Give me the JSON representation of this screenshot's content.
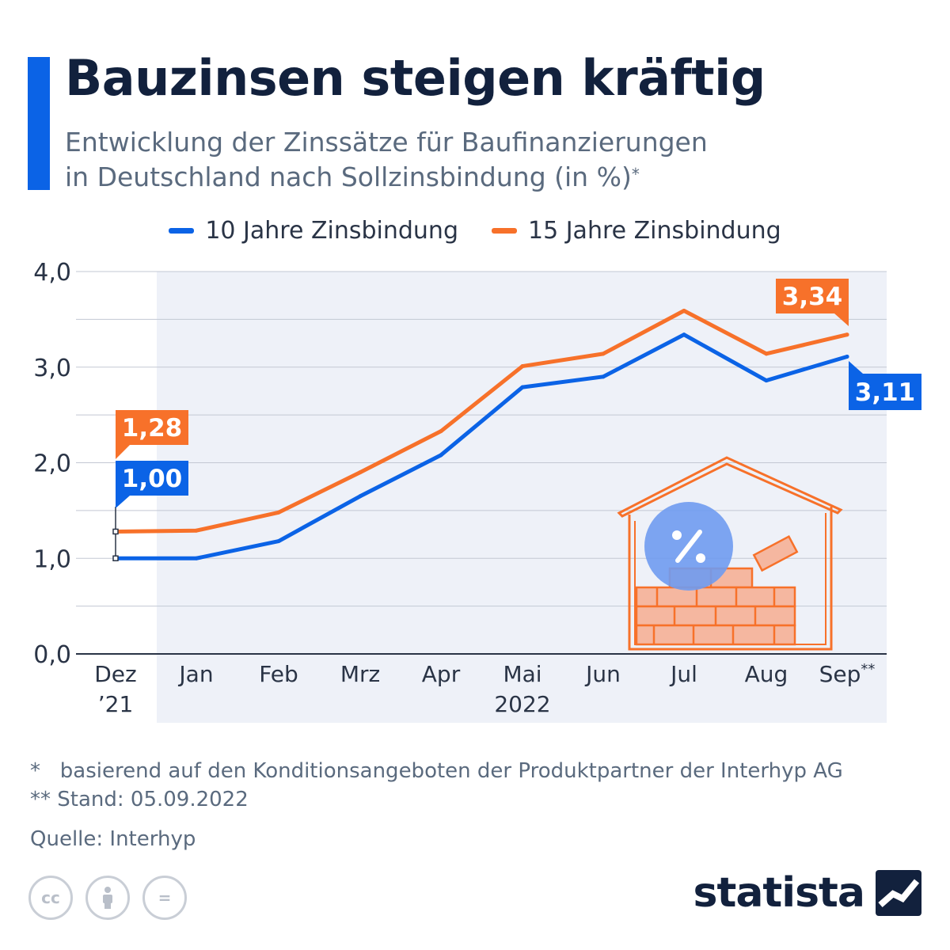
{
  "header": {
    "title": "Bauzinsen steigen kräftig",
    "subtitle_line1": "Entwicklung der Zinssätze für Baufinanzierungen",
    "subtitle_line2": "in Deutschland nach Sollzinsbindung (in %)",
    "subtitle_mark": "*"
  },
  "colors": {
    "blue": "#0b63e6",
    "orange": "#f7712a",
    "accent": "#0b63e6",
    "plot_bg": "#eef1f8",
    "text": "#12213d"
  },
  "chart_data": {
    "type": "line",
    "x": [
      "Dez ’21",
      "Jan",
      "Feb",
      "Mrz",
      "Apr",
      "Mai",
      "Jun",
      "Jul",
      "Aug",
      "Sep**"
    ],
    "x_labels": [
      {
        "line1": "Dez",
        "line2": "’21"
      },
      {
        "line1": "Jan"
      },
      {
        "line1": "Feb"
      },
      {
        "line1": "Mrz"
      },
      {
        "line1": "Apr"
      },
      {
        "line1": "Mai"
      },
      {
        "line1": "Jun"
      },
      {
        "line1": "Jul"
      },
      {
        "line1": "Aug"
      },
      {
        "line1": "Sep",
        "sup": "**"
      }
    ],
    "year_label": "2022",
    "series": [
      {
        "name": "10 Jahre Zinsbindung",
        "color": "#0b63e6",
        "values": [
          1.0,
          1.0,
          1.18,
          1.65,
          2.08,
          2.79,
          2.9,
          3.34,
          2.86,
          3.11
        ]
      },
      {
        "name": "15 Jahre Zinsbindung",
        "color": "#f7712a",
        "values": [
          1.28,
          1.29,
          1.48,
          1.9,
          2.33,
          3.01,
          3.14,
          3.59,
          3.14,
          3.34
        ]
      }
    ],
    "ylim": [
      0,
      4
    ],
    "yticks": [
      "0,0",
      "1,0",
      "2,0",
      "3,0",
      "4,0"
    ],
    "annotations": {
      "start_10": "1,00",
      "start_15": "1,28",
      "end_10": "3,11",
      "end_15": "3,34"
    },
    "grid": true,
    "legend": "top-center"
  },
  "footnotes": {
    "note1_mark": "*",
    "note1": "basierend auf den Konditionsangeboten der Produktpartner der Interhyp AG",
    "note2": "** Stand: 05.09.2022",
    "source": "Quelle: Interhyp"
  },
  "branding": {
    "logo": "statista",
    "license_icons": [
      "cc-icon",
      "by-person-icon",
      "nd-equals-icon"
    ],
    "license_glyphs": [
      "cc",
      "="
    ]
  }
}
